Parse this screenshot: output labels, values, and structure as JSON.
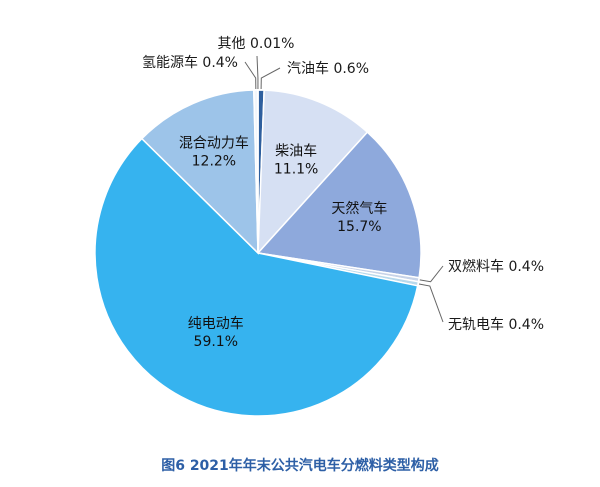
{
  "caption": "图6 2021年年末公共汽电车分燃料类型构成",
  "chart_data": {
    "type": "pie",
    "title": "",
    "slices": [
      {
        "name": "汽油车",
        "value": 0.6,
        "label": "汽油车 0.6%",
        "color": "#2e5f9e"
      },
      {
        "name": "柴油车",
        "value": 11.1,
        "label_name": "柴油车",
        "label_value": "11.1%",
        "color": "#d6e0f3"
      },
      {
        "name": "天然气车",
        "value": 15.7,
        "label_name": "天然气车",
        "label_value": "15.7%",
        "color": "#8ea9dc"
      },
      {
        "name": "双燃料车",
        "value": 0.4,
        "label": "双燃料车 0.4%",
        "color": "#c7d3e8"
      },
      {
        "name": "无轨电车",
        "value": 0.4,
        "label": "无轨电车 0.4%",
        "color": "#b8d9ec"
      },
      {
        "name": "纯电动车",
        "value": 59.1,
        "label_name": "纯电动车",
        "label_value": "59.1%",
        "color": "#36b3ef"
      },
      {
        "name": "混合动力车",
        "value": 12.2,
        "label_name": "混合动力车",
        "label_value": "12.2%",
        "color": "#9dc4e9"
      },
      {
        "name": "氢能源车",
        "value": 0.4,
        "label": "氢能源车 0.4%",
        "color": "#f2f6fb"
      },
      {
        "name": "其他",
        "value": 0.01,
        "label": "其他 0.01%",
        "color": "#eef2f7"
      }
    ]
  }
}
